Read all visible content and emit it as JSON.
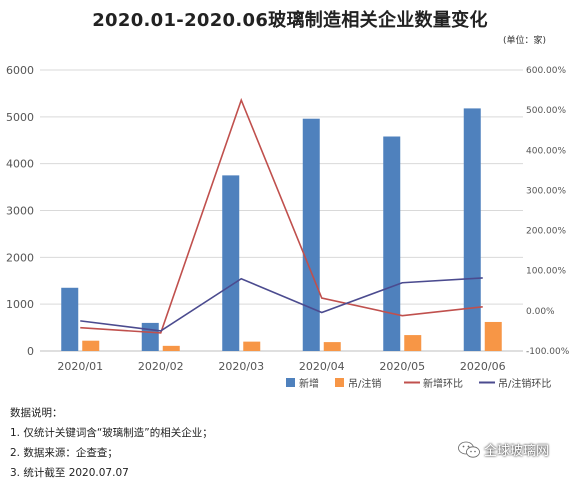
{
  "chart_data": {
    "type": "bar",
    "title": "2020.01-2020.06玻璃制造相关企业数量变化",
    "unit_label": "(单位：家)",
    "categories": [
      "2020/01",
      "2020/02",
      "2020/03",
      "2020/04",
      "2020/05",
      "2020/06"
    ],
    "series": [
      {
        "name": "新增",
        "kind": "bar",
        "axis": "left",
        "color": "#4f81bd",
        "values": [
          1350,
          600,
          3750,
          4960,
          4580,
          5180
        ]
      },
      {
        "name": "吊/注销",
        "kind": "bar",
        "axis": "left",
        "color": "#f79646",
        "values": [
          220,
          110,
          200,
          190,
          340,
          620
        ]
      },
      {
        "name": "新增环比",
        "kind": "line",
        "axis": "right",
        "color": "#c0504d",
        "values": [
          -42,
          -55,
          525,
          32,
          -12,
          10
        ]
      },
      {
        "name": "吊/注销环比",
        "kind": "line",
        "axis": "right",
        "color": "#4b4b8f",
        "values": [
          -25,
          -50,
          80,
          -4,
          70,
          82
        ]
      }
    ],
    "ylim_left": [
      0,
      6000
    ],
    "yticks_left": [
      "0",
      "1000",
      "2000",
      "3000",
      "4000",
      "5000",
      "6000"
    ],
    "ylim_right": [
      -100,
      600
    ],
    "yticks_right": [
      "-100.00%",
      "0.00%",
      "100.00%",
      "200.00%",
      "300.00%",
      "400.00%",
      "500.00%",
      "600.00%"
    ],
    "grid": true,
    "legend_position": "bottom-right"
  },
  "notes": {
    "heading": "数据说明：",
    "items": [
      "1. 仅统计关键词含“玻璃制造”的相关企业；",
      "2. 数据来源：企查查；",
      "3. 统计截至 2020.07.07"
    ]
  },
  "watermark": {
    "text": "全球玻璃网",
    "icon": "wechat-icon"
  }
}
